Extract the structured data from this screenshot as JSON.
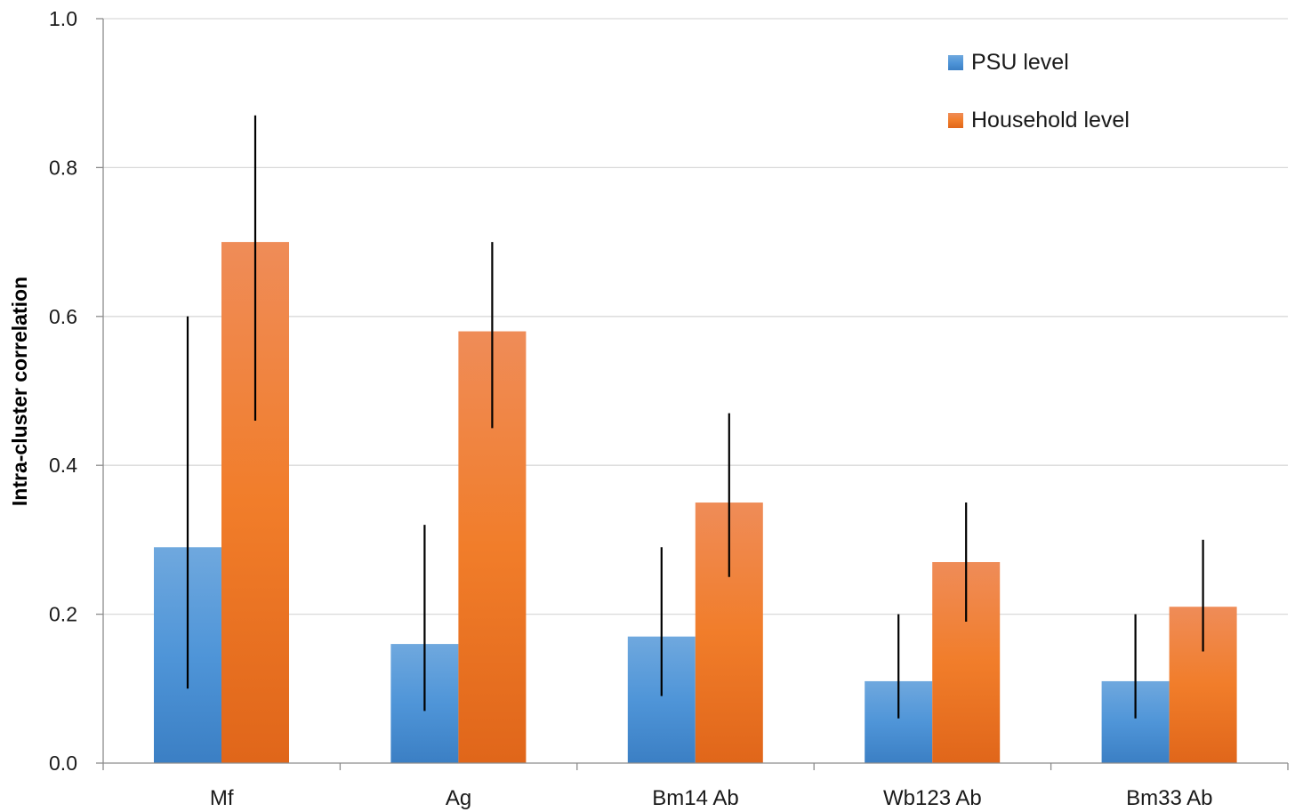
{
  "chart_data": {
    "type": "bar",
    "title": "",
    "xlabel": "",
    "ylabel": "Intra-cluster correlation",
    "ylim": [
      0,
      1.0
    ],
    "yticks": [
      "0.0",
      "0.2",
      "0.4",
      "0.6",
      "0.8",
      "1.0"
    ],
    "grid": true,
    "legend_position": "top-right",
    "categories": [
      "Mf",
      "Ag",
      "Bm14 Ab",
      "Wb123 Ab",
      "Bm33 Ab"
    ],
    "series": [
      {
        "name": "PSU level",
        "color": "#4a8fd6",
        "values": [
          0.29,
          0.16,
          0.17,
          0.11,
          0.11
        ],
        "error_low": [
          0.1,
          0.07,
          0.09,
          0.06,
          0.06
        ],
        "error_high": [
          0.6,
          0.32,
          0.29,
          0.2,
          0.2
        ]
      },
      {
        "name": "Household level",
        "color": "#f07f2e",
        "values": [
          0.7,
          0.58,
          0.35,
          0.27,
          0.21
        ],
        "error_low": [
          0.46,
          0.45,
          0.25,
          0.19,
          0.15
        ],
        "error_high": [
          0.87,
          0.7,
          0.47,
          0.35,
          0.3
        ]
      }
    ]
  }
}
